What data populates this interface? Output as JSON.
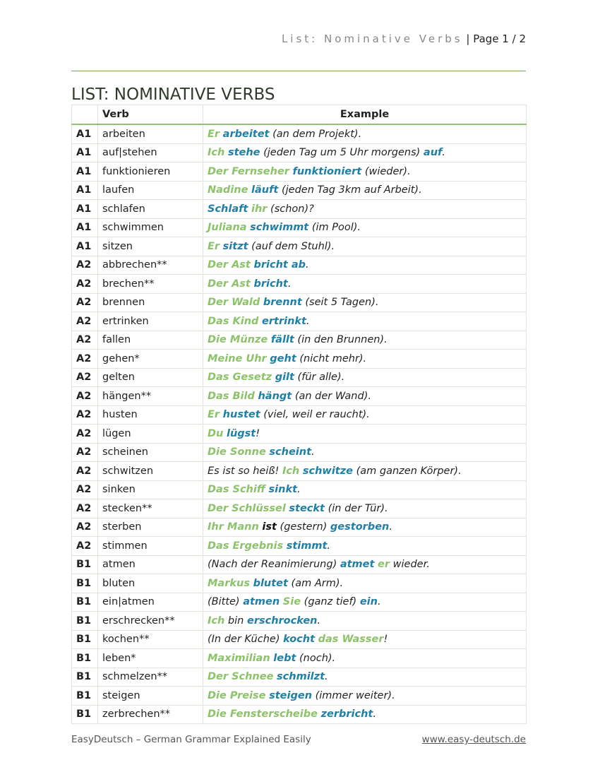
{
  "header": {
    "running_title": "List: Nominative Verbs",
    "page_label": "| Page 1 / 2"
  },
  "title": "LIST: NOMINATIVE VERBS",
  "table": {
    "columns": [
      "",
      "Verb",
      "Example"
    ],
    "rows": [
      {
        "level": "A1",
        "verb": "arbeiten",
        "example": [
          [
            "g",
            "Er"
          ],
          [
            "",
            " "
          ],
          [
            "b",
            "arbeitet"
          ],
          [
            "",
            " (an dem Projekt)."
          ]
        ]
      },
      {
        "level": "A1",
        "verb": "auf|stehen",
        "example": [
          [
            "g",
            "Ich"
          ],
          [
            "",
            " "
          ],
          [
            "b",
            "stehe"
          ],
          [
            "",
            " (jeden Tag um 5 Uhr morgens) "
          ],
          [
            "b",
            "auf"
          ],
          [
            "",
            "."
          ]
        ]
      },
      {
        "level": "A1",
        "verb": "funktionieren",
        "example": [
          [
            "g",
            "Der Fernseher"
          ],
          [
            "",
            " "
          ],
          [
            "b",
            "funktioniert"
          ],
          [
            "",
            " (wieder)."
          ]
        ]
      },
      {
        "level": "A1",
        "verb": "laufen",
        "example": [
          [
            "g",
            "Nadine"
          ],
          [
            "",
            " "
          ],
          [
            "b",
            "läuft"
          ],
          [
            "",
            " (jeden Tag 3km auf Arbeit)."
          ]
        ]
      },
      {
        "level": "A1",
        "verb": "schlafen",
        "example": [
          [
            "b",
            "Schlaft"
          ],
          [
            "",
            " "
          ],
          [
            "g",
            "ihr"
          ],
          [
            "",
            " (schon)?"
          ]
        ]
      },
      {
        "level": "A1",
        "verb": "schwimmen",
        "example": [
          [
            "g",
            "Juliana"
          ],
          [
            "",
            " "
          ],
          [
            "b",
            "schwimmt"
          ],
          [
            "",
            " (im Pool)."
          ]
        ]
      },
      {
        "level": "A1",
        "verb": "sitzen",
        "example": [
          [
            "g",
            "Er"
          ],
          [
            "",
            " "
          ],
          [
            "b",
            "sitzt"
          ],
          [
            "",
            " (auf dem Stuhl)."
          ]
        ]
      },
      {
        "level": "A2",
        "verb": "abbrechen**",
        "example": [
          [
            "g",
            "Der Ast"
          ],
          [
            "",
            " "
          ],
          [
            "b",
            "bricht ab"
          ],
          [
            "",
            "."
          ]
        ]
      },
      {
        "level": "A2",
        "verb": "brechen**",
        "example": [
          [
            "g",
            "Der Ast"
          ],
          [
            "",
            " "
          ],
          [
            "b",
            "bricht"
          ],
          [
            "",
            "."
          ]
        ]
      },
      {
        "level": "A2",
        "verb": "brennen",
        "example": [
          [
            "g",
            "Der Wald"
          ],
          [
            "",
            " "
          ],
          [
            "b",
            "brennt"
          ],
          [
            "",
            " (seit 5 Tagen)."
          ]
        ]
      },
      {
        "level": "A2",
        "verb": "ertrinken",
        "example": [
          [
            "g",
            "Das Kind"
          ],
          [
            "",
            " "
          ],
          [
            "b",
            "ertrinkt"
          ],
          [
            "",
            "."
          ]
        ]
      },
      {
        "level": "A2",
        "verb": "fallen",
        "example": [
          [
            "g",
            "Die Münze"
          ],
          [
            "",
            " "
          ],
          [
            "b",
            "fällt"
          ],
          [
            "",
            " (in den Brunnen)."
          ]
        ]
      },
      {
        "level": "A2",
        "verb": "gehen*",
        "example": [
          [
            "g",
            "Meine Uhr"
          ],
          [
            "",
            " "
          ],
          [
            "b",
            "geht"
          ],
          [
            "",
            " (nicht mehr)."
          ]
        ]
      },
      {
        "level": "A2",
        "verb": "gelten",
        "example": [
          [
            "g",
            "Das Gesetz"
          ],
          [
            "",
            " "
          ],
          [
            "b",
            "gilt"
          ],
          [
            "",
            " (für alle)."
          ]
        ]
      },
      {
        "level": "A2",
        "verb": "hängen**",
        "example": [
          [
            "g",
            "Das Bild"
          ],
          [
            "",
            " "
          ],
          [
            "b",
            "hängt"
          ],
          [
            "",
            " (an der Wand)."
          ]
        ]
      },
      {
        "level": "A2",
        "verb": "husten",
        "example": [
          [
            "g",
            "Er"
          ],
          [
            "",
            " "
          ],
          [
            "b",
            "hustet"
          ],
          [
            "",
            " (viel, weil er raucht)."
          ]
        ]
      },
      {
        "level": "A2",
        "verb": "lügen",
        "example": [
          [
            "g",
            "Du"
          ],
          [
            "",
            " "
          ],
          [
            "b",
            "lügst"
          ],
          [
            "",
            "!"
          ]
        ]
      },
      {
        "level": "A2",
        "verb": "scheinen",
        "example": [
          [
            "g",
            "Die Sonne"
          ],
          [
            "",
            " "
          ],
          [
            "b",
            "scheint"
          ],
          [
            "",
            "."
          ]
        ]
      },
      {
        "level": "A2",
        "verb": "schwitzen",
        "example": [
          [
            "",
            "Es ist so heiß! "
          ],
          [
            "g",
            "Ich"
          ],
          [
            "",
            " "
          ],
          [
            "b",
            "schwitze"
          ],
          [
            "",
            " (am ganzen Körper)."
          ]
        ]
      },
      {
        "level": "A2",
        "verb": "sinken",
        "example": [
          [
            "g",
            "Das Schiff"
          ],
          [
            "",
            " "
          ],
          [
            "b",
            "sinkt"
          ],
          [
            "",
            "."
          ]
        ]
      },
      {
        "level": "A2",
        "verb": "stecken**",
        "example": [
          [
            "g",
            "Der Schlüssel"
          ],
          [
            "",
            " "
          ],
          [
            "b",
            "steckt"
          ],
          [
            "",
            " (in der Tür)."
          ]
        ]
      },
      {
        "level": "A2",
        "verb": "sterben",
        "example": [
          [
            "g",
            "Ihr Mann"
          ],
          [
            "",
            " "
          ],
          [
            "k",
            "ist"
          ],
          [
            "",
            " (gestern) "
          ],
          [
            "b",
            "gestorben"
          ],
          [
            "",
            "."
          ]
        ]
      },
      {
        "level": "A2",
        "verb": "stimmen",
        "example": [
          [
            "g",
            "Das Ergebnis"
          ],
          [
            "",
            " "
          ],
          [
            "b",
            "stimmt"
          ],
          [
            "",
            "."
          ]
        ]
      },
      {
        "level": "B1",
        "verb": "atmen",
        "example": [
          [
            "",
            "(Nach der Reanimierung) "
          ],
          [
            "b",
            "atmet"
          ],
          [
            "",
            " "
          ],
          [
            "g",
            "er"
          ],
          [
            "",
            " wieder."
          ]
        ]
      },
      {
        "level": "B1",
        "verb": "bluten",
        "example": [
          [
            "g",
            "Markus"
          ],
          [
            "",
            " "
          ],
          [
            "b",
            "blutet"
          ],
          [
            "",
            " (am Arm)."
          ]
        ]
      },
      {
        "level": "B1",
        "verb": "ein|atmen",
        "example": [
          [
            "",
            "(Bitte) "
          ],
          [
            "b",
            "atmen"
          ],
          [
            "",
            " "
          ],
          [
            "g",
            "Sie"
          ],
          [
            "",
            " (ganz tief) "
          ],
          [
            "b",
            "ein"
          ],
          [
            "",
            "."
          ]
        ]
      },
      {
        "level": "B1",
        "verb": "erschrecken**",
        "example": [
          [
            "g",
            "Ich"
          ],
          [
            "",
            " bin "
          ],
          [
            "b",
            "erschrocken"
          ],
          [
            "",
            "."
          ]
        ]
      },
      {
        "level": "B1",
        "verb": "kochen**",
        "example": [
          [
            "",
            "(In der Küche) "
          ],
          [
            "b",
            "kocht"
          ],
          [
            "",
            " "
          ],
          [
            "g",
            "das Wasser"
          ],
          [
            "",
            "!"
          ]
        ]
      },
      {
        "level": "B1",
        "verb": "leben*",
        "example": [
          [
            "g",
            "Maximilian"
          ],
          [
            "",
            " "
          ],
          [
            "b",
            "lebt"
          ],
          [
            "",
            " (noch)."
          ]
        ]
      },
      {
        "level": "B1",
        "verb": "schmelzen**",
        "example": [
          [
            "g",
            "Der Schnee"
          ],
          [
            "",
            " "
          ],
          [
            "b",
            "schmilzt"
          ],
          [
            "",
            "."
          ]
        ]
      },
      {
        "level": "B1",
        "verb": "steigen",
        "example": [
          [
            "g",
            "Die Preise"
          ],
          [
            "",
            " "
          ],
          [
            "b",
            "steigen"
          ],
          [
            "",
            " (immer weiter)."
          ]
        ]
      },
      {
        "level": "B1",
        "verb": "zerbrechen**",
        "example": [
          [
            "g",
            "Die Fensterscheibe"
          ],
          [
            "",
            " "
          ],
          [
            "b",
            "zerbricht"
          ],
          [
            "",
            "."
          ]
        ]
      }
    ]
  },
  "colors": {
    "subject_green": "#8cc26a",
    "verb_blue": "#1f7fa6",
    "rule_green": "#7aab62"
  },
  "footer": {
    "left": "EasyDeutsch – German Grammar Explained Easily",
    "right": "www.easy-deutsch.de"
  }
}
